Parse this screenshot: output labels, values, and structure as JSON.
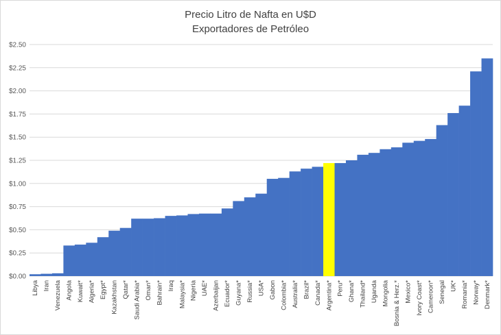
{
  "chart_data": {
    "type": "bar",
    "title": "Precio Litro de Nafta en U$D",
    "subtitle": "Exportadores de Petróleo",
    "xlabel": "",
    "ylabel": "",
    "ylim": [
      0,
      2.5
    ],
    "yticks": [
      "$0.00",
      "$0.25",
      "$0.50",
      "$0.75",
      "$1.00",
      "$1.25",
      "$1.50",
      "$1.75",
      "$2.00",
      "$2.25",
      "$2.50"
    ],
    "grid": true,
    "bar_color": "#4472C4",
    "highlight_color": "#FFFF00",
    "highlight_category": "Argentina*",
    "categories": [
      "Libya",
      "Iran",
      "Venezuela",
      "Angola",
      "Kuwait*",
      "Algeria*",
      "Egypt*",
      "Kazakhstan",
      "Qatar*",
      "Saudi Arabia*",
      "Oman*",
      "Bahrain*",
      "Iraq",
      "Malaysia*",
      "Nigeria",
      "UAE*",
      "Azerbaijan",
      "Ecuador*",
      "Guyana*",
      "Russia*",
      "USA*",
      "Gabon",
      "Colombia*",
      "Australia*",
      "Brazil*",
      "Canada*",
      "Argentina*",
      "Peru*",
      "Ghana*",
      "Thailand*",
      "Uganda",
      "Mongolia",
      "Bosnia & Herz.*",
      "Mexico*",
      "Ivory Coast*",
      "Cameroon*",
      "Senegal",
      "UK*",
      "Romania*",
      "Norway*",
      "Denmark*"
    ],
    "values": [
      0.02,
      0.025,
      0.03,
      0.33,
      0.34,
      0.36,
      0.42,
      0.49,
      0.52,
      0.62,
      0.62,
      0.625,
      0.65,
      0.655,
      0.67,
      0.675,
      0.675,
      0.73,
      0.81,
      0.85,
      0.89,
      1.05,
      1.06,
      1.13,
      1.16,
      1.18,
      1.22,
      1.22,
      1.25,
      1.31,
      1.33,
      1.37,
      1.39,
      1.44,
      1.46,
      1.48,
      1.63,
      1.76,
      1.84,
      2.21,
      2.35
    ]
  }
}
